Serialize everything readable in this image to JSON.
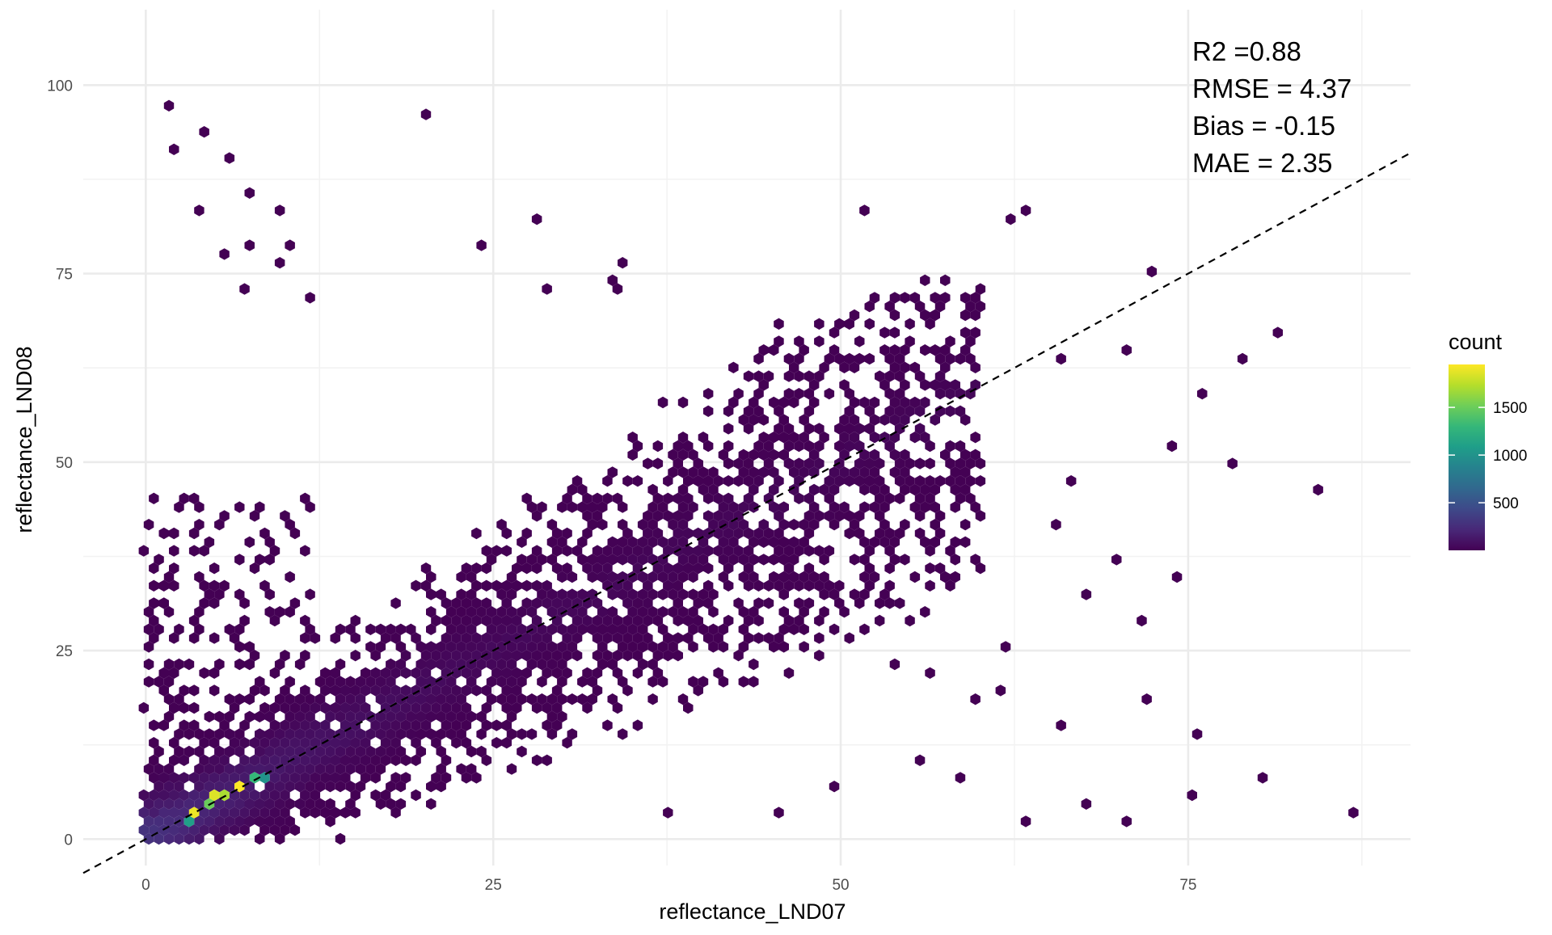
{
  "chart_data": {
    "type": "heatmap",
    "subtype": "hexbin",
    "title": "",
    "xlabel": "reflectance_LND07",
    "ylabel": "reflectance_LND08",
    "xlim": [
      -4.5,
      91
    ],
    "ylim": [
      -3.5,
      110
    ],
    "x_ticks": [
      0,
      25,
      50,
      75
    ],
    "x_tick_labels": [
      "0",
      "25",
      "50",
      "75"
    ],
    "y_ticks": [
      0,
      25,
      50,
      75,
      100
    ],
    "y_tick_labels": [
      "0",
      "25",
      "50",
      "75",
      "100"
    ],
    "grid": true,
    "reference_line": {
      "style": "dashed",
      "color": "#000000",
      "slope": 1,
      "intercept": 0
    },
    "stats": [
      "R2 =0.88",
      "RMSE = 4.37",
      "Bias = -0.15",
      "MAE = 2.35"
    ],
    "legend": {
      "title": "count",
      "position": "right",
      "ticks": [
        500,
        1000,
        1500
      ],
      "tick_labels": [
        "500",
        "1000",
        "1500"
      ],
      "range": [
        1,
        1950
      ],
      "colormap": [
        "#440154",
        "#482878",
        "#3e4989",
        "#31688e",
        "#26828e",
        "#1f9e89",
        "#35b779",
        "#6ece58",
        "#b5de2b",
        "#fde725"
      ]
    },
    "density_ridge": [
      {
        "x": 2,
        "y": 2
      },
      {
        "x": 5,
        "y": 5
      },
      {
        "x": 8,
        "y": 8
      },
      {
        "x": 12,
        "y": 12
      },
      {
        "x": 20,
        "y": 20
      },
      {
        "x": 30,
        "y": 30
      },
      {
        "x": 40,
        "y": 40
      },
      {
        "x": 50,
        "y": 48
      },
      {
        "x": 58,
        "y": 57
      }
    ],
    "peak_cells": [
      {
        "x": 3.3,
        "y": 3.6,
        "count": 1900
      },
      {
        "x": 5.2,
        "y": 5.5,
        "count": 1850
      },
      {
        "x": 6.8,
        "y": 6.8,
        "count": 1950
      },
      {
        "x": 6.0,
        "y": 6.0,
        "count": 1700
      },
      {
        "x": 4.4,
        "y": 4.5,
        "count": 1500
      },
      {
        "x": 7.8,
        "y": 7.6,
        "count": 1300
      },
      {
        "x": 8.8,
        "y": 8.5,
        "count": 1000
      },
      {
        "x": 3.0,
        "y": 2.8,
        "count": 1100
      }
    ],
    "outliers": [
      {
        "x": 2.0,
        "y": 97.0
      },
      {
        "x": 20.0,
        "y": 96.0
      },
      {
        "x": 4.3,
        "y": 94.0
      },
      {
        "x": 1.9,
        "y": 91.5
      },
      {
        "x": 6.0,
        "y": 90.5
      },
      {
        "x": 7.2,
        "y": 86.0
      },
      {
        "x": 3.5,
        "y": 83.5
      },
      {
        "x": 9.5,
        "y": 83.5
      },
      {
        "x": 52.0,
        "y": 83.5
      },
      {
        "x": 63.5,
        "y": 83.5
      },
      {
        "x": 62.5,
        "y": 82.0
      },
      {
        "x": 28.5,
        "y": 82.0
      },
      {
        "x": 23.8,
        "y": 79.0
      },
      {
        "x": 7.2,
        "y": 79.0
      },
      {
        "x": 10.5,
        "y": 79.0
      },
      {
        "x": 6.0,
        "y": 78.0
      },
      {
        "x": 9.4,
        "y": 76.2
      },
      {
        "x": 34.5,
        "y": 77.0
      },
      {
        "x": 72.5,
        "y": 75.3
      },
      {
        "x": 33.3,
        "y": 74.3
      },
      {
        "x": 29.0,
        "y": 73.5
      },
      {
        "x": 34.0,
        "y": 72.5
      },
      {
        "x": 6.8,
        "y": 72.5
      },
      {
        "x": 11.5,
        "y": 72.0
      },
      {
        "x": 81.5,
        "y": 67.0
      },
      {
        "x": 79.0,
        "y": 63.5
      },
      {
        "x": 75.8,
        "y": 59.0
      },
      {
        "x": 74.0,
        "y": 52.5
      },
      {
        "x": 78.5,
        "y": 50.0
      },
      {
        "x": 84.5,
        "y": 46.5
      },
      {
        "x": 74.0,
        "y": 34.5
      },
      {
        "x": 72.0,
        "y": 29.0
      },
      {
        "x": 72.0,
        "y": 18.0
      },
      {
        "x": 75.5,
        "y": 14.5
      },
      {
        "x": 80.5,
        "y": 8.0
      },
      {
        "x": 75.5,
        "y": 5.5
      },
      {
        "x": 87.0,
        "y": 3.5
      },
      {
        "x": 70.5,
        "y": 1.8
      },
      {
        "x": 67.5,
        "y": 4.5
      },
      {
        "x": 63.5,
        "y": 2.8
      },
      {
        "x": 65.5,
        "y": 15.5
      },
      {
        "x": 61.5,
        "y": 20.0
      },
      {
        "x": 62.0,
        "y": 26.0
      },
      {
        "x": 68.0,
        "y": 32.5
      },
      {
        "x": 69.5,
        "y": 37.0
      },
      {
        "x": 66.5,
        "y": 48.0
      },
      {
        "x": 65.5,
        "y": 42.0
      },
      {
        "x": 70.5,
        "y": 65.0
      },
      {
        "x": 66.0,
        "y": 64.0
      },
      {
        "x": 60.0,
        "y": 63.0
      },
      {
        "x": 58.5,
        "y": 8.5
      },
      {
        "x": 56.0,
        "y": 10.0
      },
      {
        "x": 45.5,
        "y": 3.5
      },
      {
        "x": 37.5,
        "y": 3.5
      },
      {
        "x": 49.5,
        "y": 7.5
      },
      {
        "x": 56.5,
        "y": 22.0
      },
      {
        "x": 60.0,
        "y": 19.0
      }
    ]
  }
}
